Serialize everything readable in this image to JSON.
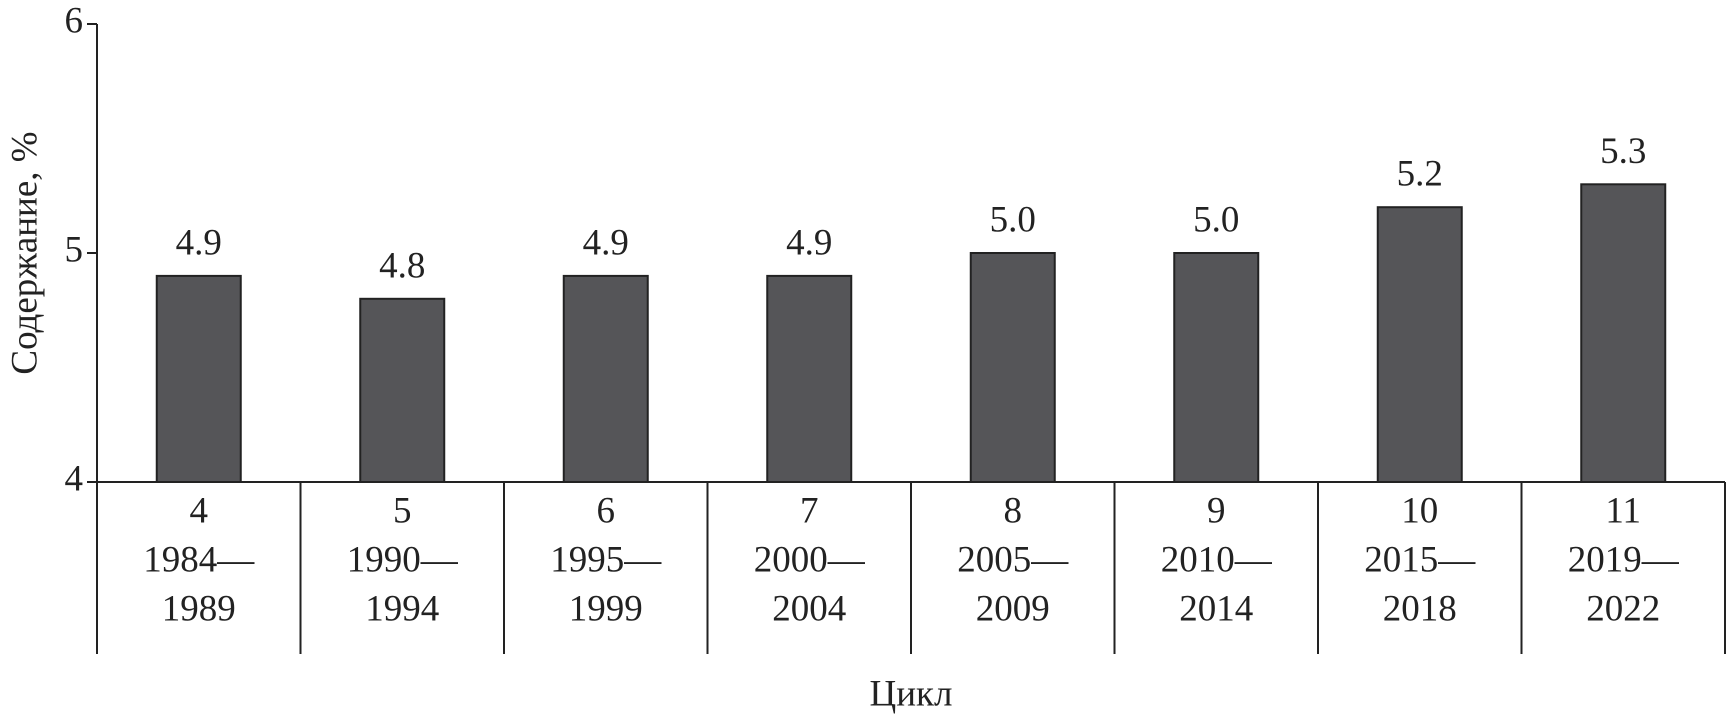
{
  "chart_data": {
    "type": "bar",
    "y_label": "Содержание, %",
    "x_label": "Цикл",
    "categories": [
      [
        "4",
        "1984—",
        "1989"
      ],
      [
        "5",
        "1990—",
        "1994"
      ],
      [
        "6",
        "1995—",
        "1999"
      ],
      [
        "7",
        "2000—",
        "2004"
      ],
      [
        "8",
        "2005—",
        "2009"
      ],
      [
        "9",
        "2010—",
        "2014"
      ],
      [
        "10",
        "2015—",
        "2018"
      ],
      [
        "11",
        "2019—",
        "2022"
      ]
    ],
    "values": [
      4.9,
      4.8,
      4.9,
      4.9,
      5.0,
      5.0,
      5.2,
      5.3
    ],
    "value_labels": [
      "4.9",
      "4.8",
      "4.9",
      "4.9",
      "5.0",
      "5.0",
      "5.2",
      "5.3"
    ],
    "color": "#555558",
    "ylim": [
      4,
      6
    ],
    "yticks": [
      4,
      5,
      6
    ],
    "grid": false
  }
}
